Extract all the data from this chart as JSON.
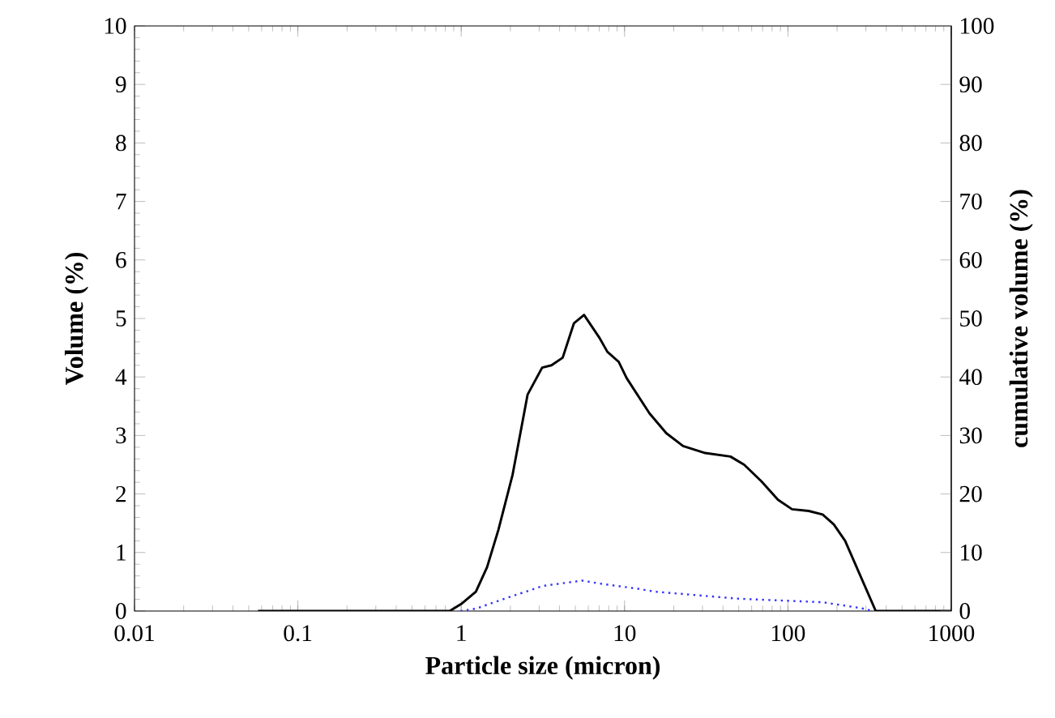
{
  "chart_data": {
    "type": "line",
    "xlabel": "Particle size (micron)",
    "ylabel": "Volume (%)",
    "y2label": "cumulative volume (%)",
    "log": "x",
    "xlim": [
      0.01,
      1000
    ],
    "xticks": [
      0.01,
      0.1,
      1,
      10,
      100,
      1000
    ],
    "ylim": [
      0,
      10
    ],
    "yticks": [
      0,
      1,
      2,
      3,
      4,
      5,
      6,
      7,
      8,
      9,
      10
    ],
    "y2lim": [
      0,
      100
    ],
    "y2ticks": [
      0,
      10,
      20,
      30,
      40,
      50,
      60,
      70,
      80,
      90,
      100
    ],
    "marker": "none",
    "series": [
      {
        "color": "#000000",
        "line_style": "solid",
        "x": [
          0.057,
          0.85,
          1.0,
          1.23,
          1.44,
          1.69,
          2.06,
          2.55,
          3.13,
          3.57,
          4.18,
          4.9,
          5.65,
          6.98,
          7.85,
          9.2,
          10.3,
          14.2,
          18,
          22.8,
          31.2,
          44.5,
          54,
          68.7,
          87,
          106,
          134,
          163,
          191,
          224,
          345,
          1000
        ],
        "values": [
          0,
          0,
          0.12,
          0.33,
          0.75,
          1.39,
          2.32,
          3.7,
          4.16,
          4.2,
          4.33,
          4.92,
          5.06,
          4.68,
          4.43,
          4.26,
          3.98,
          3.38,
          3.04,
          2.82,
          2.7,
          2.64,
          2.5,
          2.22,
          1.9,
          1.74,
          1.71,
          1.65,
          1.48,
          1.2,
          0,
          0
        ]
      },
      {
        "color": "#3333ff",
        "line_style": "dotted",
        "x": [
          0.99,
          1.23,
          1.98,
          3.18,
          5.5,
          7.0,
          12.1,
          15.4,
          50,
          163,
          280,
          330
        ],
        "values": [
          0,
          0.04,
          0.24,
          0.43,
          0.52,
          0.47,
          0.38,
          0.33,
          0.21,
          0.15,
          0.05,
          0
        ]
      }
    ]
  }
}
